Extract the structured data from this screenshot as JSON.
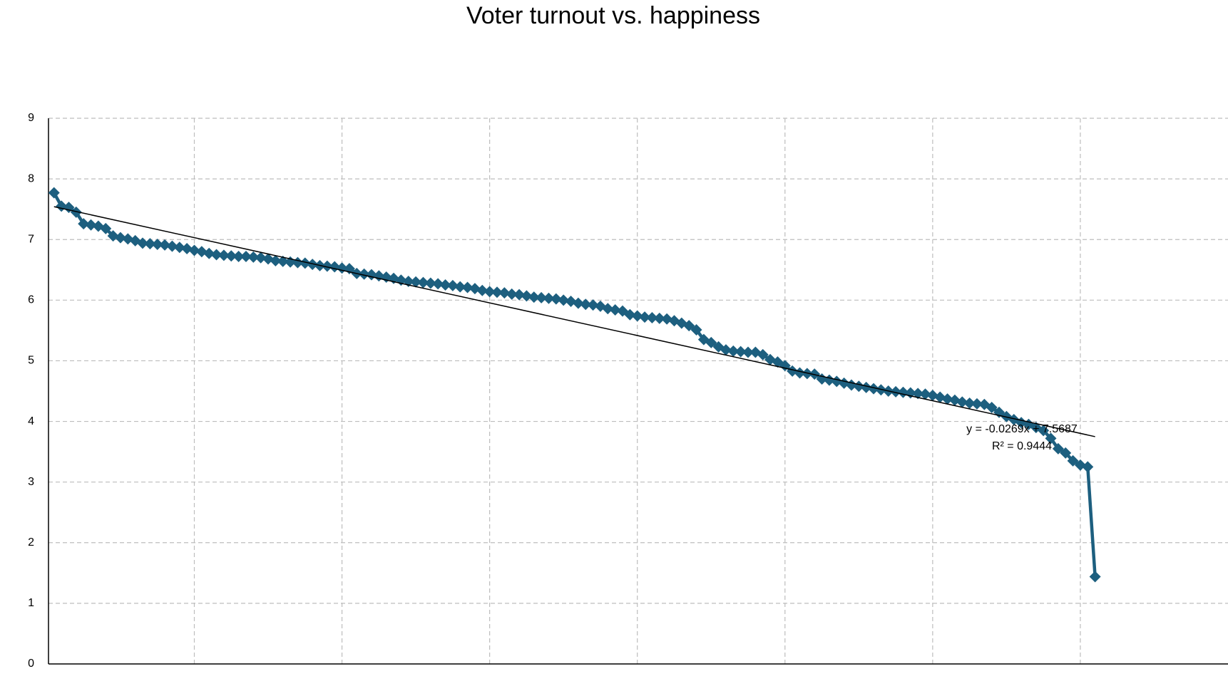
{
  "chart_data": {
    "type": "line",
    "title": "Voter turnout vs. happiness",
    "x": [
      1,
      2,
      3,
      4,
      5,
      6,
      7,
      8,
      9,
      10,
      11,
      12,
      13,
      14,
      15,
      16,
      17,
      18,
      19,
      20,
      21,
      22,
      23,
      24,
      25,
      26,
      27,
      28,
      29,
      30,
      31,
      32,
      33,
      34,
      35,
      36,
      37,
      38,
      39,
      40,
      41,
      42,
      43,
      44,
      45,
      46,
      47,
      48,
      49,
      50,
      51,
      52,
      53,
      54,
      55,
      56,
      57,
      58,
      59,
      60,
      61,
      62,
      63,
      64,
      65,
      66,
      67,
      68,
      69,
      70,
      71,
      72,
      73,
      74,
      75,
      76,
      77,
      78,
      79,
      80,
      81,
      82,
      83,
      84,
      85,
      86,
      87,
      88,
      89,
      90,
      91,
      92,
      93,
      94,
      95,
      96,
      97,
      98,
      99,
      100,
      101,
      102,
      103,
      104,
      105,
      106,
      107,
      108,
      109,
      110,
      111,
      112,
      113,
      114,
      115,
      116,
      117,
      118,
      119,
      120,
      121,
      122,
      123,
      124,
      125,
      126,
      127,
      128,
      129,
      130,
      131,
      132,
      133,
      134,
      135,
      136,
      137,
      138,
      139,
      140,
      141,
      142
    ],
    "series": [
      {
        "color": "#1d5f7f",
        "values": [
          7.77,
          7.55,
          7.53,
          7.45,
          7.26,
          7.24,
          7.22,
          7.18,
          7.06,
          7.03,
          7.01,
          6.98,
          6.94,
          6.93,
          6.92,
          6.91,
          6.89,
          6.87,
          6.85,
          6.82,
          6.8,
          6.77,
          6.75,
          6.74,
          6.73,
          6.72,
          6.72,
          6.71,
          6.7,
          6.68,
          6.65,
          6.64,
          6.63,
          6.62,
          6.61,
          6.59,
          6.57,
          6.56,
          6.55,
          6.53,
          6.52,
          6.44,
          6.43,
          6.42,
          6.4,
          6.38,
          6.36,
          6.33,
          6.31,
          6.3,
          6.29,
          6.28,
          6.27,
          6.25,
          6.24,
          6.22,
          6.21,
          6.19,
          6.16,
          6.14,
          6.13,
          6.12,
          6.1,
          6.09,
          6.07,
          6.05,
          6.04,
          6.03,
          6.02,
          6.0,
          5.98,
          5.95,
          5.93,
          5.92,
          5.9,
          5.86,
          5.84,
          5.82,
          5.76,
          5.74,
          5.72,
          5.71,
          5.7,
          5.69,
          5.66,
          5.62,
          5.58,
          5.51,
          5.35,
          5.3,
          5.23,
          5.18,
          5.16,
          5.15,
          5.14,
          5.14,
          5.1,
          5.02,
          4.98,
          4.92,
          4.83,
          4.8,
          4.79,
          4.78,
          4.7,
          4.68,
          4.66,
          4.63,
          4.6,
          4.58,
          4.56,
          4.54,
          4.52,
          4.5,
          4.49,
          4.48,
          4.47,
          4.46,
          4.45,
          4.43,
          4.4,
          4.37,
          4.35,
          4.32,
          4.3,
          4.29,
          4.28,
          4.23,
          4.15,
          4.08,
          4.03,
          3.98,
          3.95,
          3.9,
          3.85,
          3.72,
          3.55,
          3.48,
          3.35,
          3.28,
          3.25,
          1.44
        ]
      }
    ],
    "trendline": {
      "slope": -0.0269,
      "intercept": 7.5687,
      "equation": "y = -0.0269x + 7.5687",
      "r_squared": "R² = 0.9444"
    },
    "xlim": [
      0.25,
      160
    ],
    "xticks": [
      20,
      40,
      60,
      80,
      100,
      120,
      140
    ],
    "ylim": [
      0,
      9
    ],
    "yticks": [
      0,
      1,
      2,
      3,
      4,
      5,
      6,
      7,
      8,
      9
    ],
    "grid": true
  }
}
